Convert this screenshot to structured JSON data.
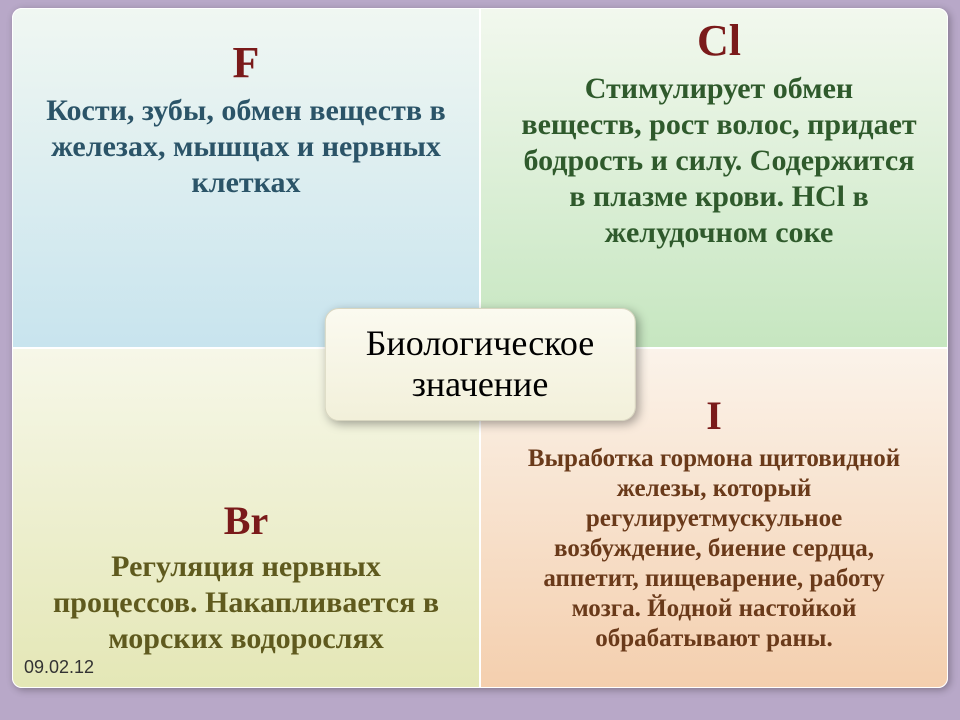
{
  "center": {
    "title_line1": "Биологическое",
    "title_line2": "значение",
    "font_size": 36,
    "bg_gradient_top": "#fbfaf0",
    "bg_gradient_bottom": "#f2f0da"
  },
  "cells": {
    "f": {
      "symbol": "F",
      "symbol_color": "#7a1a1a",
      "symbol_size": 44,
      "desc": "Кости, зубы, обмен веществ в железах, мышцах и нервных клетках",
      "desc_color": "#2b5468",
      "desc_size": 30,
      "bg_top": "#f0f7f2",
      "bg_bottom": "#c8e4ee"
    },
    "cl": {
      "symbol": "Cl",
      "symbol_color": "#7a1a1a",
      "symbol_size": 44,
      "desc": "Стимулирует обмен веществ, рост волос, придает бодрость и силу. Содержится в плазме крови. HCl в желудочном соке",
      "desc_color": "#2f5a2c",
      "desc_size": 30,
      "bg_top": "#f2f8ee",
      "bg_bottom": "#c6e6c0"
    },
    "br": {
      "symbol": "Br",
      "symbol_color": "#7a1a1a",
      "symbol_size": 40,
      "desc": "Регуляция нервных процессов. Накапливается в морских водорослях",
      "desc_color": "#5f5a1e",
      "desc_size": 30,
      "bg_top": "#f6f7e8",
      "bg_bottom": "#e4e7b6"
    },
    "i": {
      "symbol": "I",
      "symbol_color": "#7a1a1a",
      "symbol_size": 40,
      "desc": "Выработка гормона щитовидной железы, который регулируетмускульное возбуждение, биение сердца, аппетит, пищеварение, работу мозга. Йодной настойкой обрабатывают раны.",
      "desc_color": "#6a3a1a",
      "desc_size": 25,
      "bg_top": "#fbf3ea",
      "bg_bottom": "#f4cfae"
    }
  },
  "footer": {
    "date": "09.02.12"
  }
}
